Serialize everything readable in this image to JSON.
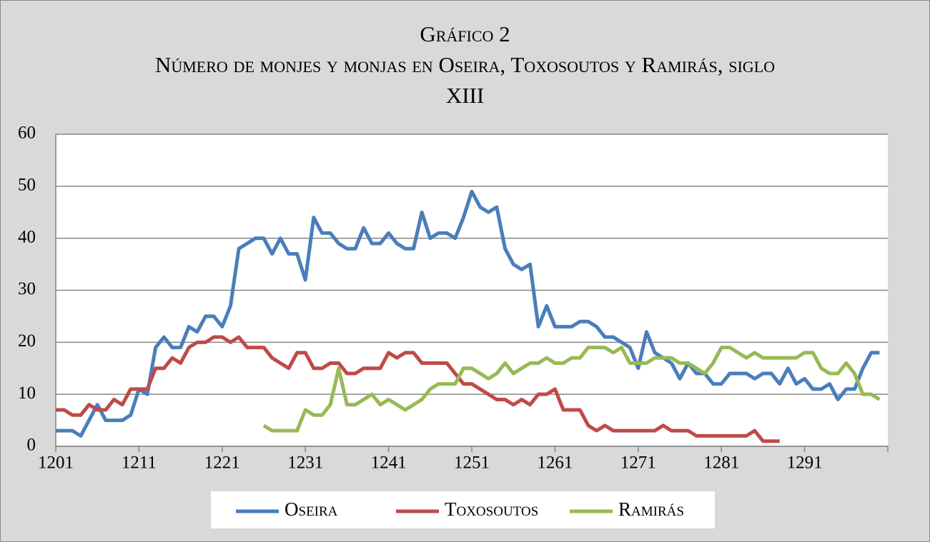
{
  "chart_data": {
    "type": "line",
    "title": "Gráfico 2",
    "subtitle": "Número de monjes y monjas en Oseira, Toxosoutos y Ramirás, siglo XIII",
    "x": [
      1201,
      1202,
      1203,
      1204,
      1205,
      1206,
      1207,
      1208,
      1209,
      1210,
      1211,
      1212,
      1213,
      1214,
      1215,
      1216,
      1217,
      1218,
      1219,
      1220,
      1221,
      1222,
      1223,
      1224,
      1225,
      1226,
      1227,
      1228,
      1229,
      1230,
      1231,
      1232,
      1233,
      1234,
      1235,
      1236,
      1237,
      1238,
      1239,
      1240,
      1241,
      1242,
      1243,
      1244,
      1245,
      1246,
      1247,
      1248,
      1249,
      1250,
      1251,
      1252,
      1253,
      1254,
      1255,
      1256,
      1257,
      1258,
      1259,
      1260,
      1261,
      1262,
      1263,
      1264,
      1265,
      1266,
      1267,
      1268,
      1269,
      1270,
      1271,
      1272,
      1273,
      1274,
      1275,
      1276,
      1277,
      1278,
      1279,
      1280,
      1281,
      1282,
      1283,
      1284,
      1285,
      1286,
      1287,
      1288,
      1289,
      1290,
      1291,
      1292,
      1293,
      1294,
      1295,
      1296,
      1297,
      1298,
      1299,
      1300
    ],
    "series": [
      {
        "name": "Oseira",
        "color": "#4a7ebb",
        "values": [
          3,
          3,
          3,
          2,
          5,
          8,
          5,
          5,
          5,
          6,
          11,
          10,
          19,
          21,
          19,
          19,
          23,
          22,
          25,
          25,
          23,
          27,
          38,
          39,
          40,
          40,
          37,
          40,
          37,
          37,
          32,
          44,
          41,
          41,
          39,
          38,
          38,
          42,
          39,
          39,
          41,
          39,
          38,
          38,
          45,
          40,
          41,
          41,
          40,
          44,
          49,
          46,
          45,
          46,
          38,
          35,
          34,
          35,
          23,
          27,
          23,
          23,
          23,
          24,
          24,
          23,
          21,
          21,
          20,
          19,
          15,
          22,
          18,
          17,
          16,
          13,
          16,
          14,
          14,
          12,
          12,
          14,
          14,
          14,
          13,
          14,
          14,
          12,
          15,
          12,
          13,
          11,
          11,
          12,
          9,
          11,
          11,
          15,
          18,
          18
        ]
      },
      {
        "name": "Toxosoutos",
        "color": "#be4b48",
        "values": [
          7,
          7,
          6,
          6,
          8,
          7,
          7,
          9,
          8,
          11,
          11,
          11,
          15,
          15,
          17,
          16,
          19,
          20,
          20,
          21,
          21,
          20,
          21,
          19,
          19,
          19,
          17,
          16,
          15,
          18,
          18,
          15,
          15,
          16,
          16,
          14,
          14,
          15,
          15,
          15,
          18,
          17,
          18,
          18,
          16,
          16,
          16,
          16,
          14,
          12,
          12,
          11,
          10,
          9,
          9,
          8,
          9,
          8,
          10,
          10,
          11,
          7,
          7,
          7,
          4,
          3,
          4,
          3,
          3,
          3,
          3,
          3,
          3,
          4,
          3,
          3,
          3,
          2,
          2,
          2,
          2,
          2,
          2,
          2,
          3,
          1,
          1,
          1,
          null,
          null,
          null,
          null,
          null,
          null,
          null,
          null,
          null,
          null,
          null,
          null
        ]
      },
      {
        "name": "Ramirás",
        "color": "#98b954",
        "values": [
          null,
          null,
          null,
          null,
          null,
          null,
          null,
          null,
          null,
          null,
          null,
          null,
          null,
          null,
          null,
          null,
          null,
          null,
          null,
          null,
          null,
          null,
          null,
          null,
          null,
          4,
          3,
          3,
          3,
          3,
          7,
          6,
          6,
          8,
          15,
          8,
          8,
          9,
          10,
          8,
          9,
          8,
          7,
          8,
          9,
          11,
          12,
          12,
          12,
          15,
          15,
          14,
          13,
          14,
          16,
          14,
          15,
          16,
          16,
          17,
          16,
          16,
          17,
          17,
          19,
          19,
          19,
          18,
          19,
          16,
          16,
          16,
          17,
          17,
          17,
          16,
          16,
          15,
          14,
          16,
          19,
          19,
          18,
          17,
          18,
          17,
          17,
          17,
          17,
          17,
          18,
          18,
          15,
          14,
          14,
          16,
          14,
          10,
          10,
          9
        ]
      }
    ],
    "xlim": [
      1201,
      1301
    ],
    "xticks": [
      1201,
      1211,
      1221,
      1231,
      1241,
      1251,
      1261,
      1271,
      1281,
      1291
    ],
    "ylim": [
      0,
      60
    ],
    "yticks": [
      0,
      10,
      20,
      30,
      40,
      50,
      60
    ],
    "grid": true,
    "legend": "bottom"
  }
}
